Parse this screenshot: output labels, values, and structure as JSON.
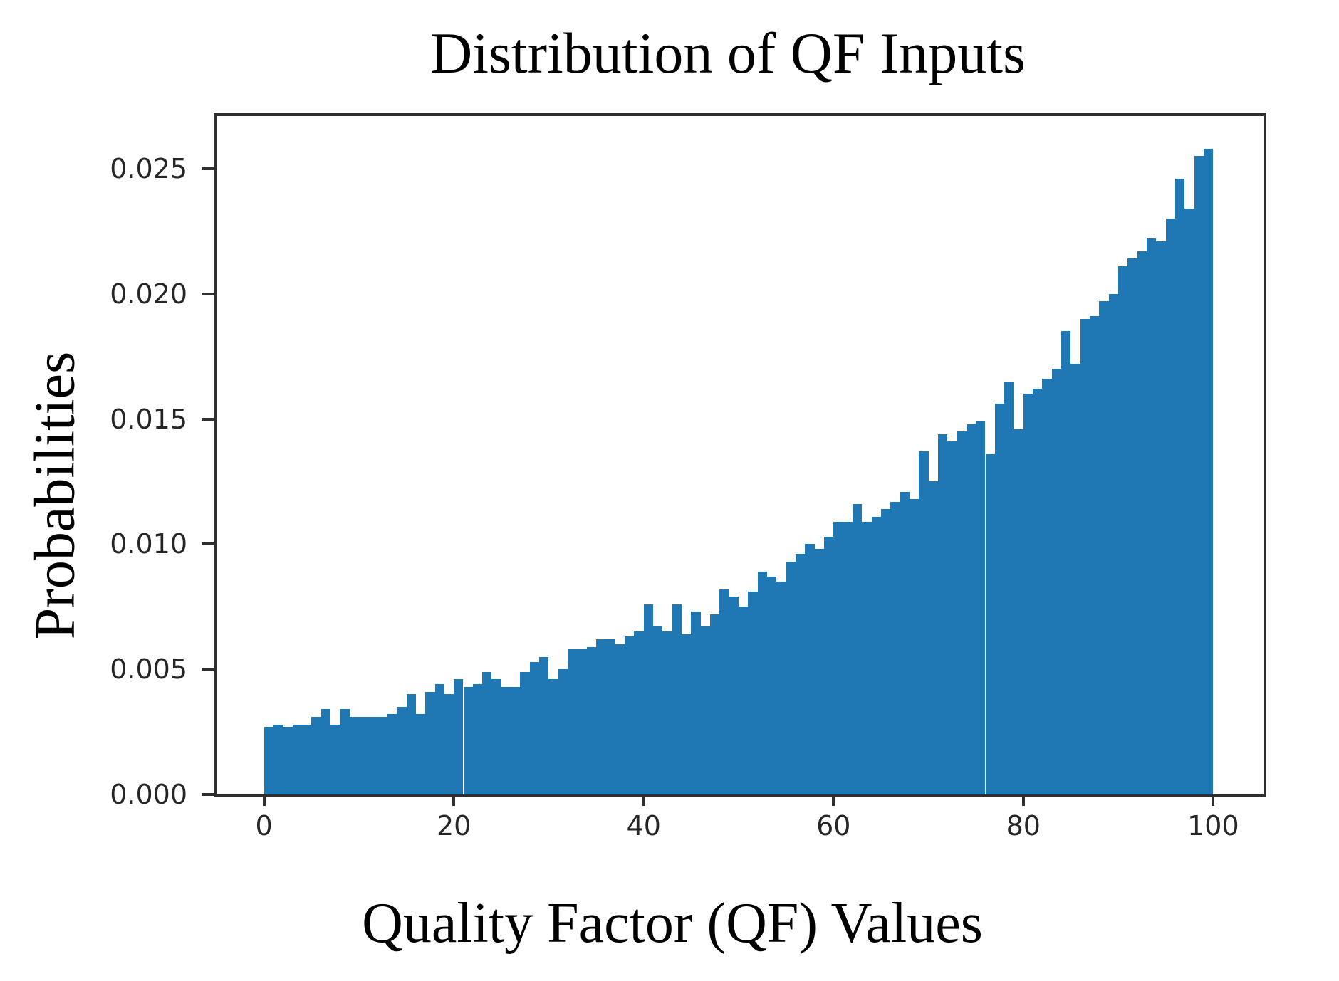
{
  "title": "Distribution of QF Inputs",
  "colors": {
    "bar": "#1f77b4",
    "axis": "#2f2f2f",
    "tick_text": "#262626",
    "label_text": "#000000",
    "background": "#ffffff"
  },
  "chart_data": {
    "type": "bar",
    "subtype": "histogram",
    "title": "Distribution of QF Inputs",
    "xlabel": "Quality Factor (QF) Values",
    "ylabel": "Probabilities",
    "bar_color": "#1f77b4",
    "grid": false,
    "legend_position": "none",
    "bin_start": 0,
    "bin_width": 1,
    "xlim": [
      -5,
      105.3
    ],
    "ylim": [
      0,
      0.0271
    ],
    "x_ticks": [
      {
        "value": 0,
        "label": "0"
      },
      {
        "value": 20,
        "label": "20"
      },
      {
        "value": 40,
        "label": "40"
      },
      {
        "value": 60,
        "label": "60"
      },
      {
        "value": 80,
        "label": "80"
      },
      {
        "value": 100,
        "label": "100"
      }
    ],
    "y_ticks": [
      {
        "value": 0.0,
        "label": "0.000"
      },
      {
        "value": 0.005,
        "label": "0.005"
      },
      {
        "value": 0.01,
        "label": "0.010"
      },
      {
        "value": 0.015,
        "label": "0.015"
      },
      {
        "value": 0.02,
        "label": "0.020"
      },
      {
        "value": 0.025,
        "label": "0.025"
      }
    ],
    "values": [
      0.0027,
      0.0028,
      0.0027,
      0.0028,
      0.0028,
      0.0031,
      0.0034,
      0.0028,
      0.0034,
      0.0031,
      0.0031,
      0.0031,
      0.0031,
      0.0032,
      0.0035,
      0.004,
      0.0032,
      0.0041,
      0.0044,
      0.004,
      0.0046,
      0.0043,
      0.0044,
      0.0049,
      0.0046,
      0.0043,
      0.0043,
      0.0049,
      0.0053,
      0.0055,
      0.0046,
      0.005,
      0.0058,
      0.0058,
      0.0059,
      0.0062,
      0.0062,
      0.006,
      0.0063,
      0.0065,
      0.0076,
      0.0067,
      0.0065,
      0.0076,
      0.0064,
      0.0073,
      0.0067,
      0.0072,
      0.0082,
      0.0079,
      0.0075,
      0.0081,
      0.0089,
      0.0087,
      0.0085,
      0.0093,
      0.0096,
      0.01,
      0.0098,
      0.0103,
      0.0109,
      0.0109,
      0.0116,
      0.0109,
      0.0111,
      0.0114,
      0.0117,
      0.0121,
      0.0118,
      0.0137,
      0.0125,
      0.0144,
      0.0141,
      0.0145,
      0.0148,
      0.0149,
      0.0136,
      0.0156,
      0.0165,
      0.0146,
      0.016,
      0.0162,
      0.0166,
      0.017,
      0.0185,
      0.0172,
      0.019,
      0.0191,
      0.0197,
      0.02,
      0.0211,
      0.0214,
      0.0217,
      0.0222,
      0.0221,
      0.023,
      0.0246,
      0.0234,
      0.0255,
      0.0258
    ]
  }
}
